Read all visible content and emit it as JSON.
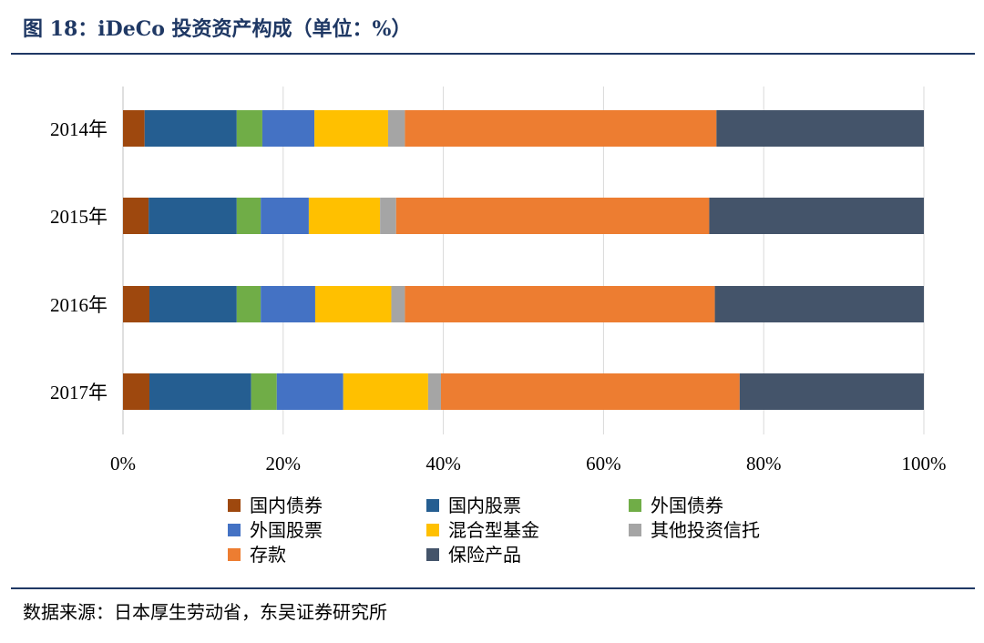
{
  "figure": {
    "title": "图 18：iDeCo 投资资产构成（单位：%）",
    "source": "数据来源：日本厚生劳动省，东吴证券研究所"
  },
  "chart_data": {
    "type": "bar",
    "orientation": "horizontal",
    "stacking": "percent",
    "categories": [
      "2014年",
      "2015年",
      "2016年",
      "2017年"
    ],
    "x_ticks": [
      "0%",
      "20%",
      "40%",
      "60%",
      "80%",
      "100%"
    ],
    "xlim": [
      0,
      100
    ],
    "grid": true,
    "legend_position": "bottom",
    "series": [
      {
        "name": "国内债券",
        "color": "#9e480e",
        "values": [
          2.7,
          3.2,
          3.3,
          3.3
        ]
      },
      {
        "name": "国内股票",
        "color": "#255e91",
        "values": [
          11.5,
          11.0,
          10.9,
          12.7
        ]
      },
      {
        "name": "外国债券",
        "color": "#70ad47",
        "values": [
          3.2,
          3.0,
          3.0,
          3.2
        ]
      },
      {
        "name": "外国股票",
        "color": "#4472c4",
        "values": [
          6.5,
          6.0,
          6.8,
          8.3
        ]
      },
      {
        "name": "混合型基金",
        "color": "#ffc000",
        "values": [
          9.2,
          8.9,
          9.5,
          10.6
        ]
      },
      {
        "name": "其他投资信托",
        "color": "#a5a5a5",
        "values": [
          2.1,
          2.0,
          1.7,
          1.6
        ]
      },
      {
        "name": "存款",
        "color": "#ed7d31",
        "values": [
          38.9,
          39.1,
          38.7,
          37.3
        ]
      },
      {
        "name": "保险产品",
        "color": "#44546a",
        "values": [
          25.9,
          26.8,
          26.1,
          23.0
        ]
      }
    ]
  }
}
